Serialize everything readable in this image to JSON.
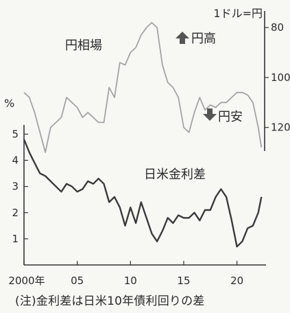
{
  "chart_data": [
    {
      "type": "line",
      "title": "",
      "ylabel": "1ドル=円",
      "ylim": [
        130,
        75
      ],
      "yticks": [
        "80",
        "100",
        "120"
      ],
      "series_label": "円相場",
      "direction_labels": {
        "up": "円高",
        "down": "円安"
      },
      "series": [
        {
          "name": "円相場",
          "x": [
            2000.0,
            2000.5,
            2001.0,
            2001.5,
            2002.0,
            2002.5,
            2003.0,
            2003.5,
            2004.0,
            2004.5,
            2005.0,
            2005.5,
            2006.0,
            2006.5,
            2007.0,
            2007.5,
            2008.0,
            2008.5,
            2009.0,
            2009.5,
            2010.0,
            2010.5,
            2011.0,
            2011.5,
            2012.0,
            2012.5,
            2013.0,
            2013.5,
            2014.0,
            2014.5,
            2015.0,
            2015.5,
            2016.0,
            2016.5,
            2017.0,
            2017.5,
            2018.0,
            2018.5,
            2019.0,
            2019.5,
            2020.0,
            2020.5,
            2021.0,
            2021.5,
            2022.0,
            2022.3
          ],
          "values": [
            106,
            108,
            114,
            122,
            130,
            120,
            118,
            116,
            108,
            110,
            112,
            116,
            114,
            116,
            118,
            118,
            104,
            108,
            94,
            95,
            90,
            88,
            83,
            80,
            78,
            80,
            95,
            102,
            104,
            108,
            120,
            122,
            114,
            108,
            113,
            111,
            112,
            110,
            110,
            108,
            106,
            106,
            107,
            110,
            120,
            128
          ]
        }
      ]
    },
    {
      "type": "line",
      "title": "",
      "xlabel": "",
      "ylabel": "%",
      "ylim": [
        0,
        5.3
      ],
      "xlim": [
        2000,
        2022.6
      ],
      "yticks": [
        "1",
        "2",
        "3",
        "4",
        "5"
      ],
      "xticks": [
        {
          "value": 2000,
          "label": "2000年"
        },
        {
          "value": 2005,
          "label": "05"
        },
        {
          "value": 2010,
          "label": "10"
        },
        {
          "value": 2015,
          "label": "15"
        },
        {
          "value": 2020,
          "label": "20"
        }
      ],
      "series_label": "日米金利差",
      "series": [
        {
          "name": "日米金利差",
          "x": [
            2000.0,
            2000.5,
            2001.0,
            2001.5,
            2002.0,
            2002.5,
            2003.0,
            2003.5,
            2004.0,
            2004.5,
            2005.0,
            2005.5,
            2006.0,
            2006.5,
            2007.0,
            2007.5,
            2008.0,
            2008.5,
            2009.0,
            2009.5,
            2010.0,
            2010.5,
            2011.0,
            2011.5,
            2012.0,
            2012.5,
            2013.0,
            2013.5,
            2014.0,
            2014.5,
            2015.0,
            2015.5,
            2016.0,
            2016.5,
            2017.0,
            2017.5,
            2018.0,
            2018.5,
            2019.0,
            2019.5,
            2020.0,
            2020.5,
            2021.0,
            2021.5,
            2022.0,
            2022.3
          ],
          "values": [
            4.8,
            4.3,
            3.9,
            3.5,
            3.4,
            3.2,
            3.0,
            2.8,
            3.1,
            3.0,
            2.8,
            2.9,
            3.2,
            3.1,
            3.3,
            3.1,
            2.4,
            2.6,
            2.2,
            1.5,
            2.2,
            1.6,
            2.4,
            1.8,
            1.2,
            0.9,
            1.3,
            1.8,
            1.6,
            1.9,
            1.8,
            1.8,
            2.0,
            1.7,
            2.1,
            2.1,
            2.6,
            2.9,
            2.6,
            1.7,
            0.7,
            0.9,
            1.4,
            1.5,
            2.0,
            2.6
          ]
        }
      ]
    }
  ],
  "note": "(注)金利差は日米10年債利回りの差",
  "colors": {
    "background": "#f7f7f4",
    "yen_line": "#a3a3a3",
    "spread_line": "#3a3a3a",
    "axis": "#333333",
    "text": "#2a2a2a"
  }
}
